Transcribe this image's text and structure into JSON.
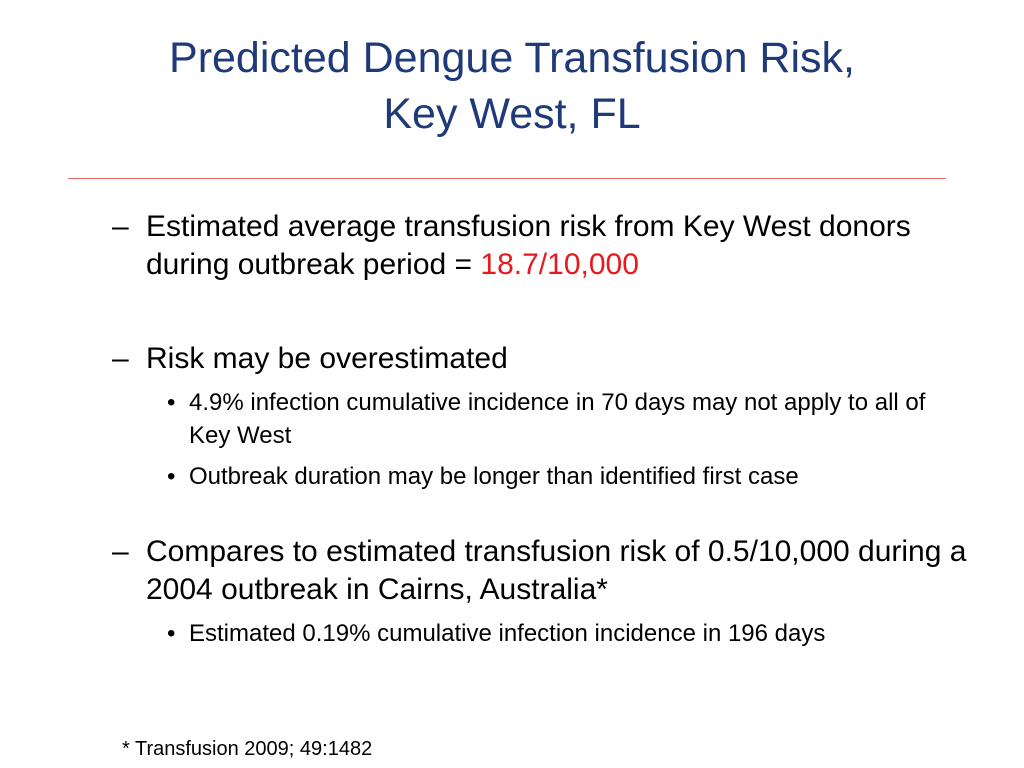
{
  "slide": {
    "title_line1": "Predicted Dengue Transfusion Risk,",
    "title_line2": "Key West, FL",
    "bullets": [
      {
        "marker": "–",
        "text": "Estimated average transfusion risk from Key West donors during outbreak period = ",
        "highlight": "18.7/10,000",
        "highlight_color": "#e8181e"
      },
      {
        "marker": "–",
        "text": "Risk may be overestimated",
        "subbullets": [
          {
            "marker": "•",
            "text": "4.9% infection cumulative incidence in 70 days may not apply to all of Key West"
          },
          {
            "marker": "•",
            "text": "Outbreak duration may be longer than identified first case"
          }
        ]
      },
      {
        "marker": "–",
        "text": "Compares to estimated transfusion risk of 0.5/10,000 during a 2004 outbreak in Cairns, Australia*",
        "subbullets": [
          {
            "marker": "•",
            "text": "Estimated 0.19% cumulative infection incidence in 196 days"
          }
        ]
      }
    ],
    "footnote": "* Transfusion 2009; 49:1482"
  },
  "colors": {
    "title": "#1f3a78",
    "rule": "#e46c6c",
    "highlight": "#e8181e"
  }
}
